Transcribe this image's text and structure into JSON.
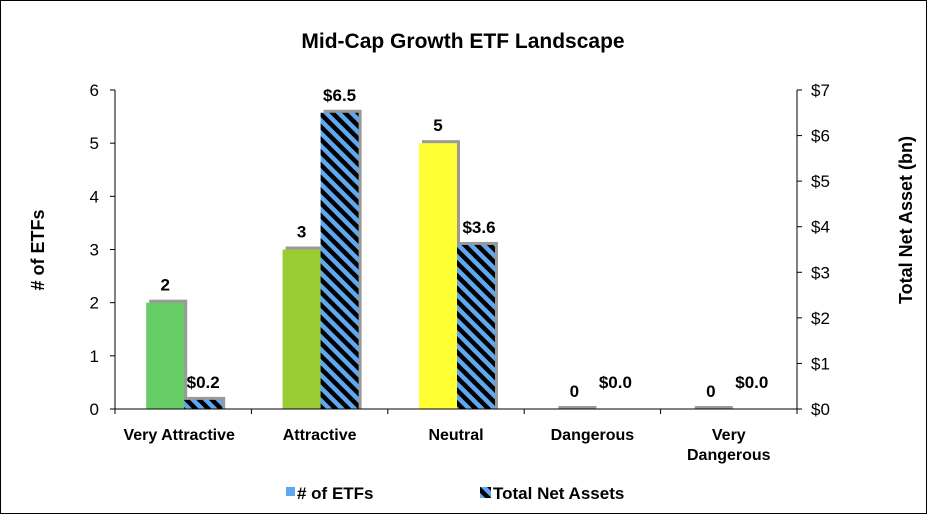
{
  "chart_data": {
    "type": "bar",
    "title": "Mid-Cap Growth ETF Landscape",
    "categories": [
      "Very Attractive",
      "Attractive",
      "Neutral",
      "Dangerous",
      "Very Dangerous"
    ],
    "series": [
      {
        "name": "# of ETFs",
        "axis": "left",
        "values": [
          2,
          3,
          5,
          0,
          0
        ],
        "labels": [
          "2",
          "3",
          "5",
          "0",
          "0"
        ],
        "colors": [
          "#66cc66",
          "#99cc33",
          "#ffff33",
          "#aaaaaa",
          "#aaaaaa"
        ],
        "legend_color": "#5fa8f0"
      },
      {
        "name": "Total Net Assets",
        "axis": "right",
        "values": [
          0.2,
          6.5,
          3.6,
          0.0,
          0.0
        ],
        "labels": [
          "$0.2",
          "$6.5",
          "$3.6",
          "$0.0",
          "$0.0"
        ],
        "pattern": "diagonal-stripes",
        "stripe_colors": [
          "#5fa8f0",
          "#000000"
        ]
      }
    ],
    "ylabel_left": "# of ETFs",
    "ylabel_right": "Total Net Asset (bn)",
    "ylim_left": [
      0,
      6
    ],
    "ylim_right": [
      0,
      7
    ],
    "yticks_left": [
      "0",
      "1",
      "2",
      "3",
      "4",
      "5",
      "6"
    ],
    "yticks_right": [
      "$0",
      "$1",
      "$2",
      "$3",
      "$4",
      "$5",
      "$6",
      "$7"
    ],
    "legend_position": "bottom",
    "grid": false
  }
}
